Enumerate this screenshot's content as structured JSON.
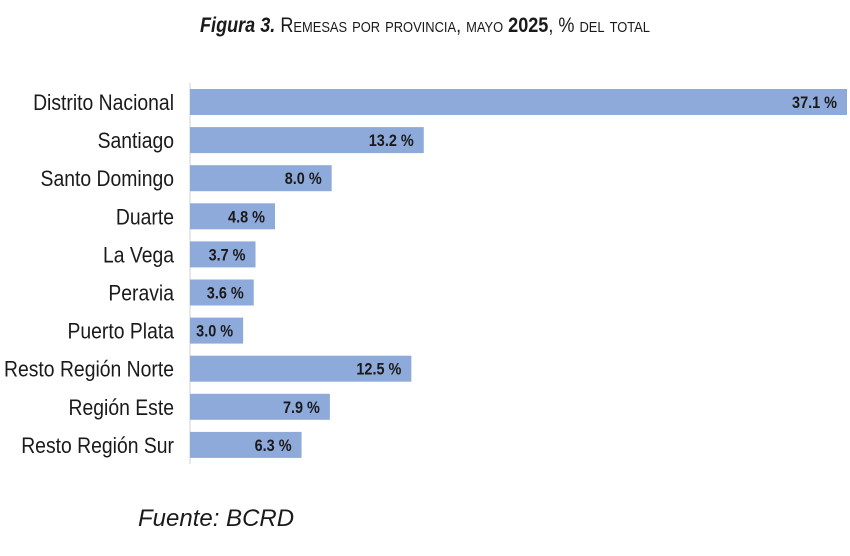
{
  "title": {
    "figure_label": "Figura 3.",
    "text_part1": "Remesas por provincia, mayo",
    "year": "2025",
    "text_part2": ", % del total"
  },
  "source": "Fuente: BCRD",
  "colors": {
    "bar": "#8eaadb",
    "text": "#1a1a1a"
  },
  "chart_data": {
    "type": "bar",
    "orientation": "horizontal",
    "title": "Figura 3. Remesas por provincia, mayo 2025, % del total",
    "categories": [
      "Distrito Nacional",
      "Santiago",
      "Santo Domingo",
      "Duarte",
      "La Vega",
      "Peravia",
      "Puerto Plata",
      "Resto Región Norte",
      "Región Este",
      "Resto Región Sur"
    ],
    "values": [
      37.1,
      13.2,
      8.0,
      4.8,
      3.7,
      3.6,
      3.0,
      12.5,
      7.9,
      6.3
    ],
    "value_labels": [
      "37.1 %",
      "13.2 %",
      "8.0 %",
      "4.8 %",
      "3.7 %",
      "3.6 %",
      "3.0 %",
      "12.5 %",
      "7.9 %",
      "6.3 %"
    ],
    "xlim": [
      0,
      37.1
    ],
    "grid": false,
    "legend": "none"
  }
}
